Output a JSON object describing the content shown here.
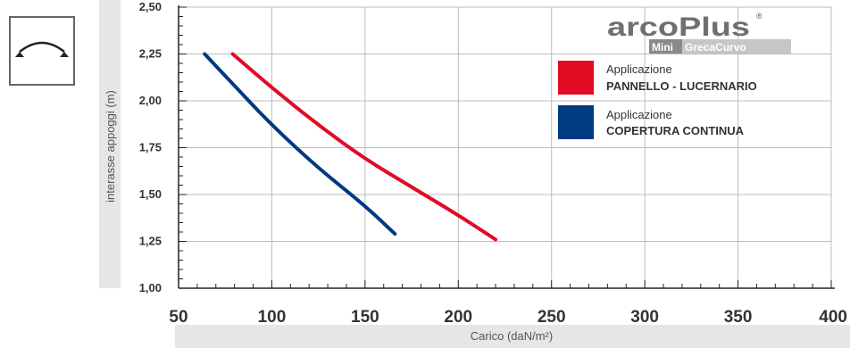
{
  "logo": {
    "brand": "arcoPlus",
    "registered": "®",
    "subtitle_prefix": "Mini",
    "subtitle_rest": "GrecaCurvo"
  },
  "icon": {
    "name": "curved-beam-supports-icon"
  },
  "legend": [
    {
      "line1": "Applicazione",
      "line2": "PANNELLO - LUCERNARIO",
      "color": "#e30a24"
    },
    {
      "line1": "Applicazione",
      "line2": "COPERTURA CONTINUA",
      "color": "#003a80"
    }
  ],
  "chart_data": {
    "type": "line",
    "xlabel": "Carico (daN/m²)",
    "ylabel": "interasse appoggi (m)",
    "xlim": [
      50,
      400
    ],
    "ylim": [
      1.0,
      2.5
    ],
    "x_ticks": [
      "50",
      "100",
      "150",
      "200",
      "250",
      "300",
      "350",
      "400"
    ],
    "y_ticks": [
      "1,00",
      "1,25",
      "1,50",
      "1,75",
      "2,00",
      "2,25",
      "2,50"
    ],
    "grid": true,
    "legend_position": "top-right",
    "series": [
      {
        "name": "PANNELLO - LUCERNARIO",
        "color": "#e30a24",
        "points": [
          [
            79,
            2.25
          ],
          [
            100,
            2.07
          ],
          [
            125,
            1.87
          ],
          [
            150,
            1.69
          ],
          [
            175,
            1.54
          ],
          [
            200,
            1.39
          ],
          [
            220,
            1.26
          ]
        ]
      },
      {
        "name": "COPERTURA CONTINUA",
        "color": "#003a80",
        "points": [
          [
            64,
            2.25
          ],
          [
            80,
            2.08
          ],
          [
            100,
            1.87
          ],
          [
            125,
            1.64
          ],
          [
            150,
            1.44
          ],
          [
            166,
            1.29
          ]
        ]
      }
    ]
  }
}
